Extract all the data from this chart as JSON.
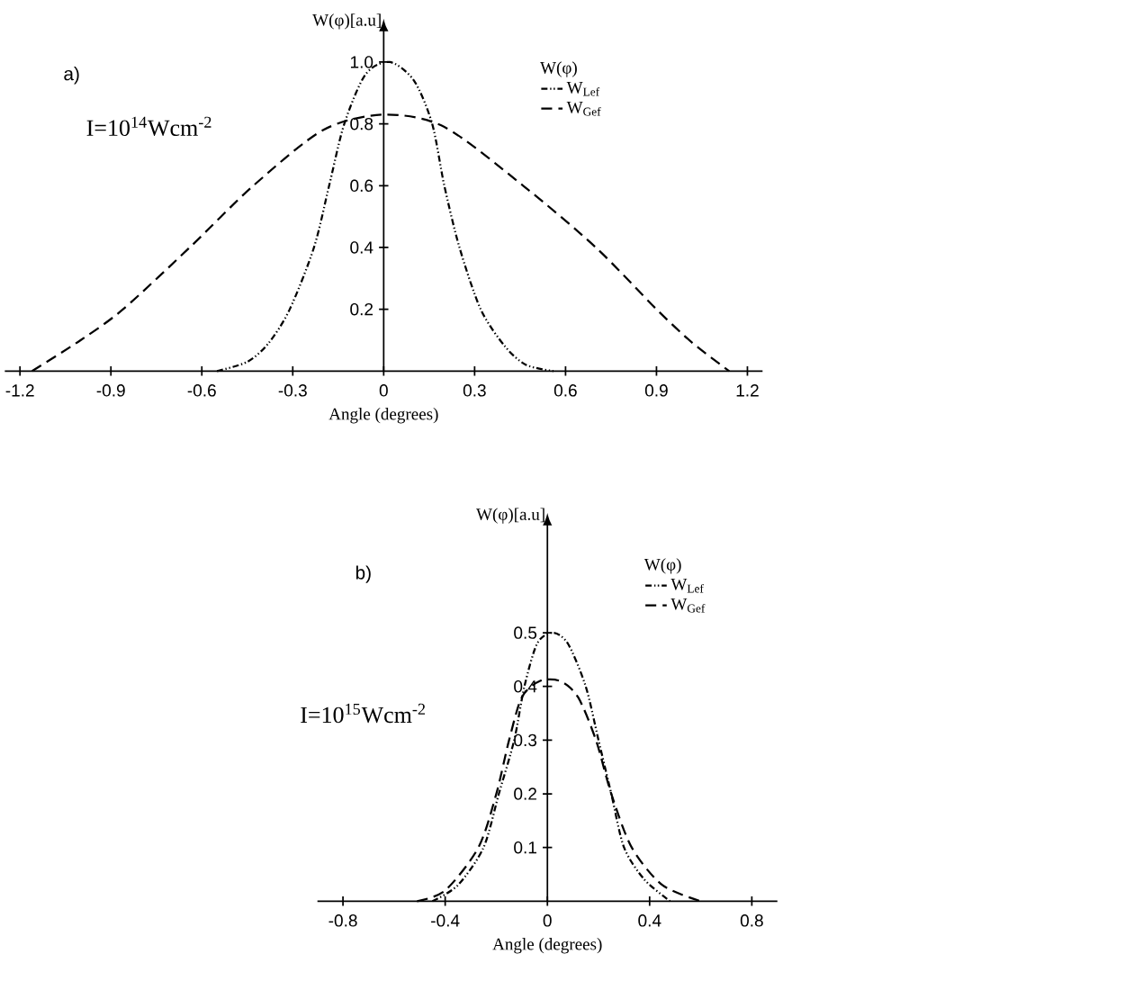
{
  "chart_data": [
    {
      "type": "line",
      "title": "a)",
      "xlabel": "Angle (degrees)",
      "ylabel": "W(φ)[a.u]",
      "legend_title": "W(φ)",
      "annotations": [
        "I=10$^{14}$Wcm$^{-2}$"
      ],
      "xlim": [
        -1.25,
        1.25
      ],
      "ylim": [
        0,
        1.1
      ],
      "xticks": [
        -1.2,
        -0.9,
        -0.6,
        -0.3,
        0,
        0.3,
        0.6,
        0.9,
        1.2
      ],
      "yticks": [
        0.2,
        0.4,
        0.6,
        0.8,
        {
          "value": 1,
          "label": "1.0"
        }
      ],
      "grid": false,
      "legend": "top right",
      "series": [
        {
          "name": "W$_{Lef}$",
          "color": "#000000",
          "line_style": "dashdotdotted",
          "x": [
            -0.55,
            -0.45,
            -0.38,
            -0.31,
            -0.23,
            -0.18,
            -0.13,
            -0.06,
            0.02,
            0.1,
            0.16,
            0.2,
            0.25,
            0.32,
            0.4,
            0.47,
            0.56
          ],
          "values": [
            0,
            0.03,
            0.09,
            0.2,
            0.4,
            0.6,
            0.8,
            0.96,
            1.0,
            0.94,
            0.8,
            0.6,
            0.4,
            0.2,
            0.08,
            0.02,
            0
          ]
        },
        {
          "name": "W$_{Gef}$",
          "color": "#000000",
          "line_style": "dashed",
          "x": [
            -1.16,
            -1.0,
            -0.86,
            -0.64,
            -0.43,
            -0.2,
            0,
            0.2,
            0.46,
            0.7,
            0.9,
            1.02,
            1.14
          ],
          "values": [
            0,
            0.1,
            0.2,
            0.4,
            0.6,
            0.78,
            0.83,
            0.79,
            0.6,
            0.4,
            0.2,
            0.09,
            0
          ]
        }
      ]
    },
    {
      "type": "line",
      "title": "b)",
      "xlabel": "Angle (degrees)",
      "ylabel": "W(φ)[a.u]",
      "legend_title": "W(φ)",
      "annotations": [
        "I=10$^{15}$Wcm$^{-2}$"
      ],
      "xlim": [
        -0.9,
        0.9
      ],
      "ylim": [
        0,
        0.7
      ],
      "xticks": [
        -0.8,
        -0.4,
        0,
        0.4,
        0.8
      ],
      "yticks": [
        0.1,
        0.2,
        0.3,
        0.4,
        0.5
      ],
      "grid": false,
      "legend": "top right",
      "series": [
        {
          "name": "W$_{Lef}$",
          "color": "#000000",
          "line_style": "dashdotdotted",
          "x": [
            -0.45,
            -0.35,
            -0.25,
            -0.19,
            -0.13,
            -0.09,
            -0.04,
            0.02,
            0.08,
            0.15,
            0.2,
            0.25,
            0.3,
            0.38,
            0.48
          ],
          "values": [
            0,
            0.03,
            0.1,
            0.2,
            0.3,
            0.4,
            0.48,
            0.5,
            0.48,
            0.4,
            0.3,
            0.2,
            0.1,
            0.04,
            0
          ]
        },
        {
          "name": "W$_{Gef}$",
          "color": "#000000",
          "line_style": "dashed",
          "x": [
            -0.51,
            -0.4,
            -0.27,
            -0.2,
            -0.15,
            -0.1,
            -0.03,
            0.05,
            0.12,
            0.19,
            0.25,
            0.33,
            0.45,
            0.6
          ],
          "values": [
            0,
            0.02,
            0.1,
            0.2,
            0.3,
            0.38,
            0.41,
            0.41,
            0.38,
            0.3,
            0.2,
            0.1,
            0.03,
            0
          ]
        }
      ]
    }
  ]
}
